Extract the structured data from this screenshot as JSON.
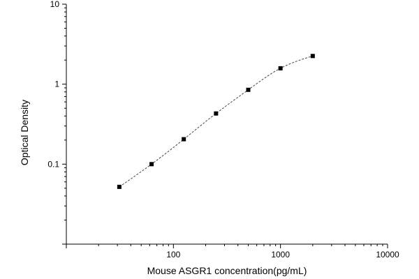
{
  "chart_data": {
    "type": "scatter",
    "xlabel": "Mouse ASGR1 concentration(pg/mL)",
    "ylabel": "Optical Density",
    "xscale": "log",
    "yscale": "log",
    "xlim": [
      10,
      10000
    ],
    "ylim": [
      0.01,
      10
    ],
    "x_ticks": [
      {
        "value": 100,
        "label": "100"
      },
      {
        "value": 1000,
        "label": "1000"
      },
      {
        "value": 10000,
        "label": "10000"
      }
    ],
    "y_ticks": [
      {
        "value": 0.1,
        "label": "0.1"
      },
      {
        "value": 1,
        "label": "1"
      },
      {
        "value": 10,
        "label": "10"
      }
    ],
    "grid": false,
    "series": [
      {
        "x": [
          31.25,
          62.5,
          125,
          250,
          500,
          1000,
          2000
        ],
        "y": [
          0.052,
          0.1,
          0.205,
          0.43,
          0.85,
          1.58,
          2.25
        ],
        "marker": "square",
        "color": "#000000",
        "fit_line": "dashed"
      }
    ]
  }
}
